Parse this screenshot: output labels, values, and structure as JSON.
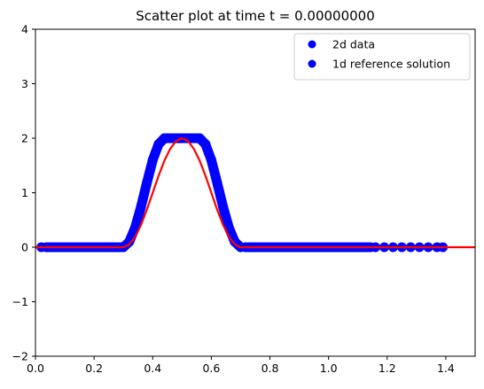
{
  "chart_data": {
    "type": "scatter",
    "title": "Scatter plot at time t =     0.00000000",
    "xlabel": "",
    "ylabel": "",
    "xlim": [
      0,
      1.5
    ],
    "ylim": [
      -2,
      4
    ],
    "x_ticks": [
      "0.0",
      "0.2",
      "0.4",
      "0.6",
      "0.8",
      "1.0",
      "1.2",
      "1.4"
    ],
    "y_ticks": [
      "−2",
      "−1",
      "0",
      "1",
      "2",
      "3",
      "4"
    ],
    "grid": false,
    "legend_position": "top-right",
    "series": [
      {
        "name": "2d data",
        "kind": "scatter",
        "color": "#0000ff",
        "x": [
          0.02,
          0.05,
          0.08,
          0.11,
          0.14,
          0.17,
          0.2,
          0.23,
          0.26,
          0.29,
          0.3,
          0.32,
          0.34,
          0.36,
          0.38,
          0.4,
          0.42,
          0.44,
          0.46,
          0.48,
          0.5,
          0.52,
          0.54,
          0.56,
          0.58,
          0.6,
          0.62,
          0.64,
          0.66,
          0.68,
          0.7,
          0.73,
          0.76,
          0.8,
          0.84,
          0.88,
          0.92,
          0.96,
          1.0,
          1.04,
          1.08,
          1.12,
          1.16,
          1.19,
          1.22,
          1.25,
          1.28,
          1.31,
          1.34,
          1.37,
          1.39
        ],
        "y": [
          0,
          0,
          0,
          0,
          0,
          0,
          0,
          0,
          0,
          0,
          0,
          0.1,
          0.36,
          0.74,
          1.18,
          1.6,
          1.89,
          2.0,
          2.0,
          2.0,
          2.0,
          2.0,
          2.0,
          2.0,
          1.89,
          1.6,
          1.18,
          0.74,
          0.36,
          0.1,
          0,
          0,
          0,
          0,
          0,
          0,
          0,
          0,
          0,
          0,
          0,
          0,
          0,
          0,
          0,
          0,
          0,
          0,
          0,
          0,
          0
        ]
      },
      {
        "name": "1d reference solution",
        "kind": "line",
        "color": "#ff0000",
        "x": [
          0,
          0.3,
          0.32,
          0.34,
          0.36,
          0.38,
          0.4,
          0.42,
          0.44,
          0.46,
          0.48,
          0.5,
          0.52,
          0.54,
          0.56,
          0.58,
          0.6,
          0.62,
          0.64,
          0.66,
          0.68,
          0.7,
          1.5
        ],
        "y": [
          0,
          0,
          0.05,
          0.19,
          0.41,
          0.69,
          1.0,
          1.31,
          1.59,
          1.81,
          1.95,
          2.0,
          1.95,
          1.81,
          1.59,
          1.31,
          1.0,
          0.69,
          0.41,
          0.19,
          0.05,
          0,
          0
        ]
      }
    ]
  }
}
